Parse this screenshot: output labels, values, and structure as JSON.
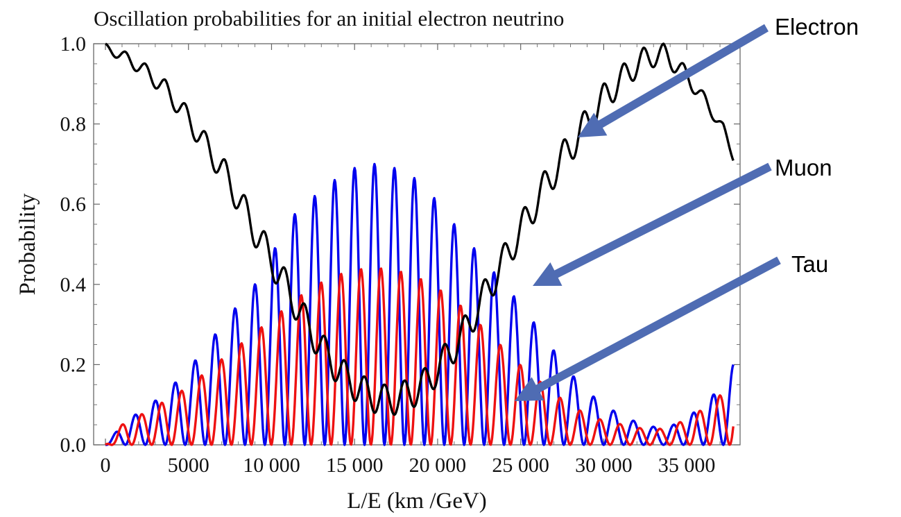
{
  "chart_data": {
    "type": "line",
    "title": "Oscillation probabilities for an initial electron neutrino",
    "xlabel": "L/E (km /GeV)",
    "ylabel": "Probability",
    "xlim": [
      0,
      38000
    ],
    "ylim": [
      0.0,
      1.0
    ],
    "x_ticks": [
      0,
      5000,
      10000,
      15000,
      20000,
      25000,
      30000,
      35000
    ],
    "x_tick_labels": [
      "0",
      "5000",
      "10 000",
      "15 000",
      "20 000",
      "25 000",
      "30 000",
      "35 000"
    ],
    "y_ticks": [
      0.0,
      0.2,
      0.4,
      0.6,
      0.8,
      1.0
    ],
    "y_tick_labels": [
      "0.0",
      "0.2",
      "0.4",
      "0.6",
      "0.8",
      "1.0"
    ],
    "grid": false,
    "series": [
      {
        "name": "Electron",
        "color": "#000000",
        "x": [
          0,
          1200,
          2400,
          3600,
          4800,
          6000,
          7200,
          8400,
          9600,
          10800,
          12000,
          13200,
          14400,
          15600,
          16800,
          18000,
          19200,
          20400,
          21600,
          22800,
          24000,
          25200,
          26400,
          27600,
          28800,
          30000,
          31200,
          32400,
          33600,
          34800,
          36000,
          37200,
          37800
        ],
        "y": [
          1.0,
          0.98,
          0.95,
          0.91,
          0.85,
          0.78,
          0.71,
          0.62,
          0.53,
          0.44,
          0.35,
          0.27,
          0.21,
          0.17,
          0.15,
          0.16,
          0.19,
          0.25,
          0.32,
          0.41,
          0.5,
          0.59,
          0.68,
          0.76,
          0.83,
          0.9,
          0.95,
          0.99,
          1.0,
          0.95,
          0.88,
          0.8,
          0.73
        ]
      },
      {
        "name": "Muon",
        "color": "#0000ee",
        "x": [
          0,
          1200,
          2400,
          3600,
          4800,
          6000,
          7200,
          8400,
          9600,
          10800,
          12000,
          13200,
          14400,
          15600,
          16800,
          18000,
          19200,
          20400,
          21600,
          22800,
          24000,
          25200,
          26400,
          27600,
          28800,
          30000,
          31200,
          32400,
          33600,
          34800,
          36000,
          37200,
          37800
        ],
        "y": [
          0.0,
          0.06,
          0.09,
          0.13,
          0.18,
          0.24,
          0.31,
          0.37,
          0.43,
          0.55,
          0.6,
          0.64,
          0.68,
          0.7,
          0.7,
          0.68,
          0.65,
          0.58,
          0.52,
          0.46,
          0.4,
          0.34,
          0.27,
          0.2,
          0.14,
          0.1,
          0.07,
          0.05,
          0.04,
          0.06,
          0.1,
          0.15,
          0.2
        ]
      },
      {
        "name": "Tau",
        "color": "#ee1111",
        "x": [
          0,
          1200,
          2400,
          3600,
          4800,
          6000,
          7200,
          8400,
          9600,
          10800,
          12000,
          13200,
          14400,
          15600,
          16800,
          18000,
          19200,
          20400,
          21600,
          22800,
          24000,
          25200,
          26400,
          27600,
          28800,
          30000,
          31200,
          32400,
          33600,
          34800,
          36000,
          37200,
          37800
        ],
        "y": [
          0.0,
          0.06,
          0.08,
          0.11,
          0.14,
          0.18,
          0.22,
          0.26,
          0.3,
          0.34,
          0.38,
          0.41,
          0.43,
          0.44,
          0.44,
          0.43,
          0.41,
          0.38,
          0.34,
          0.29,
          0.24,
          0.19,
          0.15,
          0.11,
          0.08,
          0.06,
          0.05,
          0.04,
          0.04,
          0.06,
          0.09,
          0.13,
          0.16
        ]
      }
    ],
    "annotations": [
      {
        "text": "Electron",
        "series": "Electron"
      },
      {
        "text": "Muon",
        "series": "Muon"
      },
      {
        "text": "Tau",
        "series": "Tau"
      }
    ],
    "annotation_arrow_color": "#4f6cb3"
  }
}
